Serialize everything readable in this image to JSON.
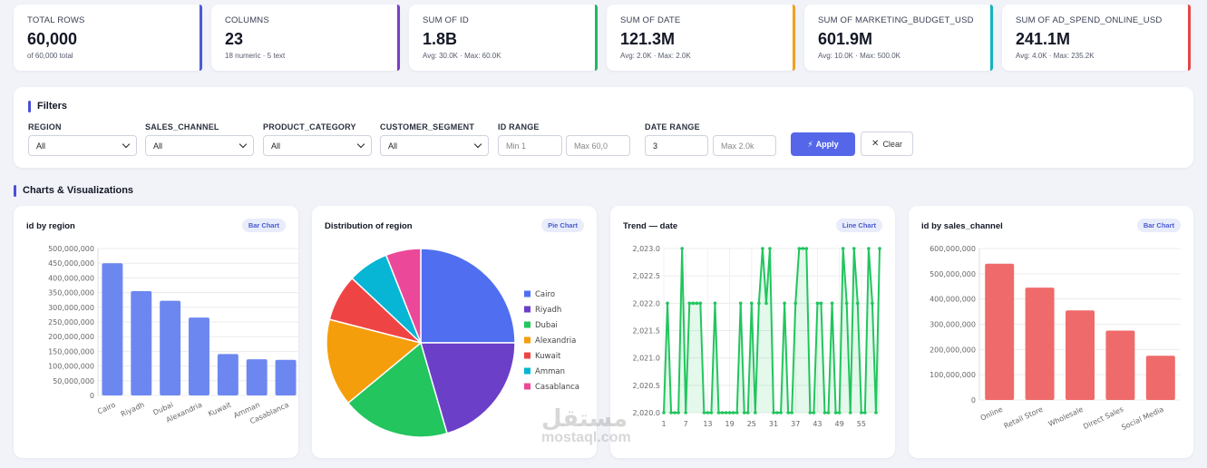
{
  "kpis": [
    {
      "label": "TOTAL ROWS",
      "value": "60,000",
      "sub": "of 60,000 total",
      "color": "#4a5bd6"
    },
    {
      "label": "COLUMNS",
      "value": "23",
      "sub": "18 numeric · 5 text",
      "color": "#7b3fc4"
    },
    {
      "label": "SUM OF ID",
      "value": "1.8B",
      "sub": "Avg: 30.0K · Max: 60.0K",
      "color": "#22b863"
    },
    {
      "label": "SUM OF DATE",
      "value": "121.3M",
      "sub": "Avg: 2.0K · Max: 2.0K",
      "color": "#f0a020"
    },
    {
      "label": "SUM OF MARKETING_BUDGET_USD",
      "value": "601.9M",
      "sub": "Avg: 10.0K · Max: 500.0K",
      "color": "#14b2c0"
    },
    {
      "label": "SUM OF AD_SPEND_ONLINE_USD",
      "value": "241.1M",
      "sub": "Avg: 4.0K · Max: 235.2K",
      "color": "#e04848"
    }
  ],
  "filters": {
    "title": "Filters",
    "selects": [
      {
        "label": "REGION",
        "value": "All"
      },
      {
        "label": "SALES_CHANNEL",
        "value": "All"
      },
      {
        "label": "PRODUCT_CATEGORY",
        "value": "All"
      },
      {
        "label": "CUSTOMER_SEGMENT",
        "value": "All"
      }
    ],
    "id_range": {
      "label": "ID RANGE",
      "min_placeholder": "Min 1",
      "max_placeholder": "Max 60,0"
    },
    "date_range": {
      "label": "DATE RANGE",
      "min_value": "3",
      "max_placeholder": "Max 2.0k"
    },
    "apply_label": "Apply",
    "clear_label": "Clear"
  },
  "charts_section_title": "Charts & Visualizations",
  "watermark": {
    "line1": "مستقل",
    "line2": "mostaql.com"
  },
  "chart_data": [
    {
      "type": "bar",
      "title": "id by region",
      "badge": "Bar Chart",
      "categories": [
        "Cairo",
        "Riyadh",
        "Dubai",
        "Alexandria",
        "Kuwait",
        "Amman",
        "Casablanca"
      ],
      "values": [
        450000000,
        355000000,
        322000000,
        265000000,
        141000000,
        123000000,
        121000000
      ],
      "ylim": [
        0,
        500000000
      ],
      "yticks": [
        0,
        50000000,
        100000000,
        150000000,
        200000000,
        250000000,
        300000000,
        350000000,
        400000000,
        450000000,
        500000000
      ],
      "color": "#6d87f0",
      "grid": true
    },
    {
      "type": "pie",
      "title": "Distribution of region",
      "badge": "Pie Chart",
      "categories": [
        "Cairo",
        "Riyadh",
        "Dubai",
        "Alexandria",
        "Kuwait",
        "Amman",
        "Casablanca"
      ],
      "values": [
        25,
        20.5,
        18.5,
        15,
        8,
        7,
        6
      ],
      "colors": [
        "#4f6ff0",
        "#6c3fc8",
        "#22c55e",
        "#f59e0b",
        "#ef4444",
        "#06b6d4",
        "#ec4899"
      ],
      "legend": "right"
    },
    {
      "type": "line",
      "title": "Trend — date",
      "badge": "Line Chart",
      "x": [
        1,
        2,
        3,
        4,
        5,
        6,
        7,
        8,
        9,
        10,
        11,
        12,
        13,
        14,
        15,
        16,
        17,
        18,
        19,
        20,
        21,
        22,
        23,
        24,
        25,
        26,
        27,
        28,
        29,
        30,
        31,
        32,
        33,
        34,
        35,
        36,
        37,
        38,
        39,
        40,
        41,
        42,
        43,
        44,
        45,
        46,
        47,
        48,
        49,
        50,
        51,
        52,
        53,
        54,
        55,
        56,
        57,
        58,
        59,
        60
      ],
      "values": [
        2020,
        2022,
        2020,
        2020,
        2020,
        2023,
        2020,
        2022,
        2022,
        2022,
        2022,
        2020,
        2020,
        2020,
        2022,
        2020,
        2020,
        2020,
        2020,
        2020,
        2020,
        2022,
        2020,
        2020,
        2022,
        2020,
        2022,
        2023,
        2022,
        2023,
        2020,
        2020,
        2020,
        2022,
        2020,
        2020,
        2022,
        2023,
        2023,
        2023,
        2020,
        2020,
        2022,
        2022,
        2020,
        2020,
        2022,
        2020,
        2020,
        2023,
        2022,
        2020,
        2023,
        2022,
        2020,
        2020,
        2023,
        2022,
        2020,
        2023
      ],
      "xticks": [
        1,
        7,
        13,
        19,
        25,
        31,
        37,
        43,
        49,
        55
      ],
      "ylim": [
        2020,
        2023
      ],
      "yticks": [
        "2,020.0",
        "2,020.5",
        "2,021.0",
        "2,021.5",
        "2,022.0",
        "2,022.5",
        "2,023.0"
      ],
      "color": "#22c55e",
      "fill": true
    },
    {
      "type": "bar",
      "title": "id by sales_channel",
      "badge": "Bar Chart",
      "categories": [
        "Online",
        "Retail Store",
        "Wholesale",
        "Direct Sales",
        "Social Media"
      ],
      "values": [
        540000000,
        445000000,
        355000000,
        275000000,
        175000000
      ],
      "ylim": [
        0,
        600000000
      ],
      "yticks": [
        0,
        100000000,
        200000000,
        300000000,
        400000000,
        500000000,
        600000000
      ],
      "color": "#ef6a6a",
      "grid": true
    }
  ]
}
